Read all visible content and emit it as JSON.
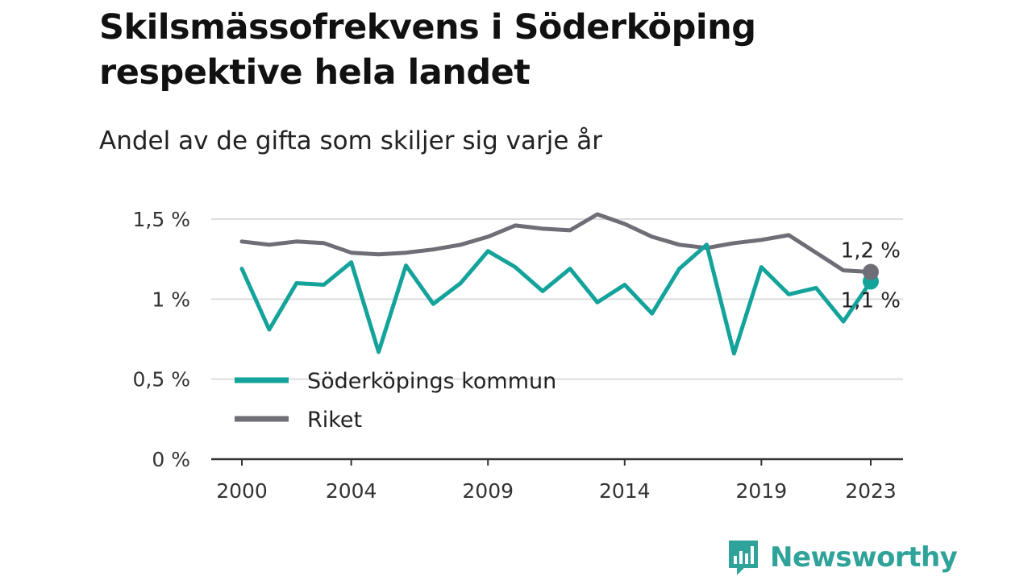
{
  "title": "Skilsmässofrekvens i Söderköping respektive hela landet",
  "subtitle": "Andel av de gifta som skiljer sig varje år",
  "brand": "Newsworthy",
  "colors": {
    "local": "#14a39a",
    "national": "#6f6d75",
    "brand": "#2fa39a"
  },
  "chart_data": {
    "type": "line",
    "x": [
      2000,
      2001,
      2002,
      2003,
      2004,
      2005,
      2006,
      2007,
      2008,
      2009,
      2010,
      2011,
      2012,
      2013,
      2014,
      2015,
      2016,
      2017,
      2018,
      2019,
      2020,
      2021,
      2022,
      2023
    ],
    "x_tick_values": [
      2000,
      2004,
      2009,
      2014,
      2019,
      2023
    ],
    "x_tick_labels": [
      "2000",
      "2004",
      "2009",
      "2014",
      "2019",
      "2023"
    ],
    "y_tick_values": [
      0,
      0.5,
      1,
      1.5
    ],
    "y_tick_labels": [
      "0 %",
      "0,5 %",
      "1 %",
      "1,5 %"
    ],
    "ylim": [
      0,
      1.5
    ],
    "xlim": [
      1999,
      2024
    ],
    "grid": true,
    "legend_position": "lower-left",
    "series": [
      {
        "name": "Söderköpings kommun",
        "color": "#14a39a",
        "values": [
          1.19,
          0.81,
          1.1,
          1.09,
          1.23,
          0.67,
          1.21,
          0.97,
          1.1,
          1.3,
          1.2,
          1.05,
          1.19,
          0.98,
          1.09,
          0.91,
          1.19,
          1.34,
          0.66,
          1.2,
          1.03,
          1.07,
          0.86,
          1.11
        ],
        "end_label": "1,1 %"
      },
      {
        "name": "Riket",
        "color": "#6f6d75",
        "values": [
          1.36,
          1.34,
          1.36,
          1.35,
          1.29,
          1.28,
          1.29,
          1.31,
          1.34,
          1.39,
          1.46,
          1.44,
          1.43,
          1.53,
          1.47,
          1.39,
          1.34,
          1.32,
          1.35,
          1.37,
          1.4,
          1.29,
          1.18,
          1.17
        ],
        "end_label": "1,2 %"
      }
    ]
  }
}
